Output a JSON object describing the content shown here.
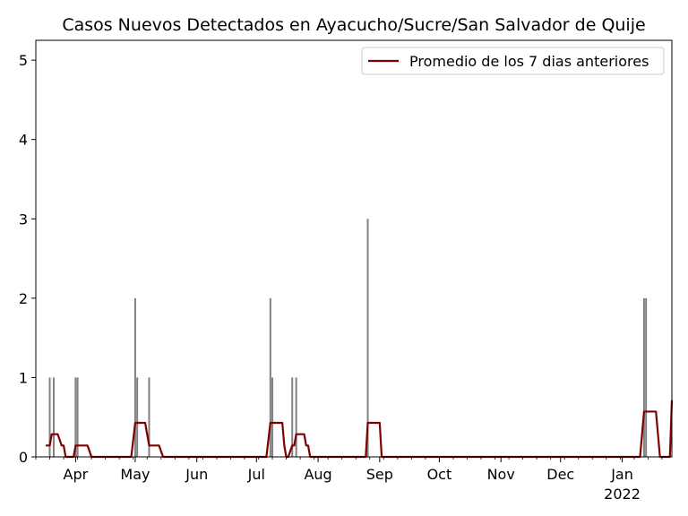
{
  "chart_data": {
    "type": "bar",
    "title": "Casos Nuevos Detectados en Ayacucho/Sucre/San Salvador de Quije",
    "xlabel": "",
    "ylabel": "",
    "ylim": [
      0,
      5.25
    ],
    "y_ticks": [
      0,
      1,
      2,
      3,
      4,
      5
    ],
    "x_axis": {
      "start": "2021-03-12",
      "end": "2022-01-26",
      "month_ticks": [
        {
          "date": "2021-04-01",
          "label": "Apr"
        },
        {
          "date": "2021-05-01",
          "label": "May"
        },
        {
          "date": "2021-06-01",
          "label": "Jun"
        },
        {
          "date": "2021-07-01",
          "label": "Jul"
        },
        {
          "date": "2021-08-01",
          "label": "Aug"
        },
        {
          "date": "2021-09-01",
          "label": "Sep"
        },
        {
          "date": "2021-10-01",
          "label": "Oct"
        },
        {
          "date": "2021-11-01",
          "label": "Nov"
        },
        {
          "date": "2021-12-01",
          "label": "Dec"
        },
        {
          "date": "2022-01-01",
          "label": "Jan",
          "sublabel": "2022"
        }
      ]
    },
    "grid": false,
    "legend": {
      "placement": "top-right"
    },
    "series": [
      {
        "kind": "bar",
        "color": "#808080",
        "points": [
          {
            "date": "2021-03-19",
            "value": 1
          },
          {
            "date": "2021-03-21",
            "value": 1
          },
          {
            "date": "2021-04-01",
            "value": 1
          },
          {
            "date": "2021-04-02",
            "value": 1
          },
          {
            "date": "2021-05-01",
            "value": 2
          },
          {
            "date": "2021-05-02",
            "value": 1
          },
          {
            "date": "2021-05-08",
            "value": 1
          },
          {
            "date": "2021-07-08",
            "value": 2
          },
          {
            "date": "2021-07-09",
            "value": 1
          },
          {
            "date": "2021-07-19",
            "value": 1
          },
          {
            "date": "2021-07-21",
            "value": 1
          },
          {
            "date": "2021-08-26",
            "value": 3
          },
          {
            "date": "2022-01-12",
            "value": 2
          },
          {
            "date": "2022-01-13",
            "value": 2
          }
        ]
      },
      {
        "kind": "line",
        "name": "Promedio de los 7 dias anteriores",
        "color": "#800000",
        "points": [
          {
            "date": "2021-03-17",
            "value": 0.143
          },
          {
            "date": "2021-03-19",
            "value": 0.143
          },
          {
            "date": "2021-03-20",
            "value": 0.286
          },
          {
            "date": "2021-03-23",
            "value": 0.286
          },
          {
            "date": "2021-03-25",
            "value": 0.143
          },
          {
            "date": "2021-03-26",
            "value": 0.143
          },
          {
            "date": "2021-03-27",
            "value": 0
          },
          {
            "date": "2021-03-31",
            "value": 0
          },
          {
            "date": "2021-04-01",
            "value": 0.143
          },
          {
            "date": "2021-04-07",
            "value": 0.143
          },
          {
            "date": "2021-04-09",
            "value": 0
          },
          {
            "date": "2021-04-29",
            "value": 0
          },
          {
            "date": "2021-05-01",
            "value": 0.429
          },
          {
            "date": "2021-05-06",
            "value": 0.429
          },
          {
            "date": "2021-05-08",
            "value": 0.143
          },
          {
            "date": "2021-05-13",
            "value": 0.143
          },
          {
            "date": "2021-05-15",
            "value": 0
          },
          {
            "date": "2021-07-06",
            "value": 0
          },
          {
            "date": "2021-07-08",
            "value": 0.429
          },
          {
            "date": "2021-07-14",
            "value": 0.429
          },
          {
            "date": "2021-07-15",
            "value": 0.143
          },
          {
            "date": "2021-07-16",
            "value": 0
          },
          {
            "date": "2021-07-17",
            "value": 0
          },
          {
            "date": "2021-07-19",
            "value": 0.143
          },
          {
            "date": "2021-07-20",
            "value": 0.143
          },
          {
            "date": "2021-07-21",
            "value": 0.286
          },
          {
            "date": "2021-07-25",
            "value": 0.286
          },
          {
            "date": "2021-07-26",
            "value": 0.143
          },
          {
            "date": "2021-07-27",
            "value": 0.143
          },
          {
            "date": "2021-07-28",
            "value": 0
          },
          {
            "date": "2021-08-25",
            "value": 0
          },
          {
            "date": "2021-08-26",
            "value": 0.429
          },
          {
            "date": "2021-09-01",
            "value": 0.429
          },
          {
            "date": "2021-09-02",
            "value": 0
          },
          {
            "date": "2022-01-10",
            "value": 0
          },
          {
            "date": "2022-01-12",
            "value": 0.571
          },
          {
            "date": "2022-01-18",
            "value": 0.571
          },
          {
            "date": "2022-01-20",
            "value": 0
          },
          {
            "date": "2022-01-25",
            "value": 0
          },
          {
            "date": "2022-01-26",
            "value": 0.714
          }
        ]
      }
    ]
  }
}
